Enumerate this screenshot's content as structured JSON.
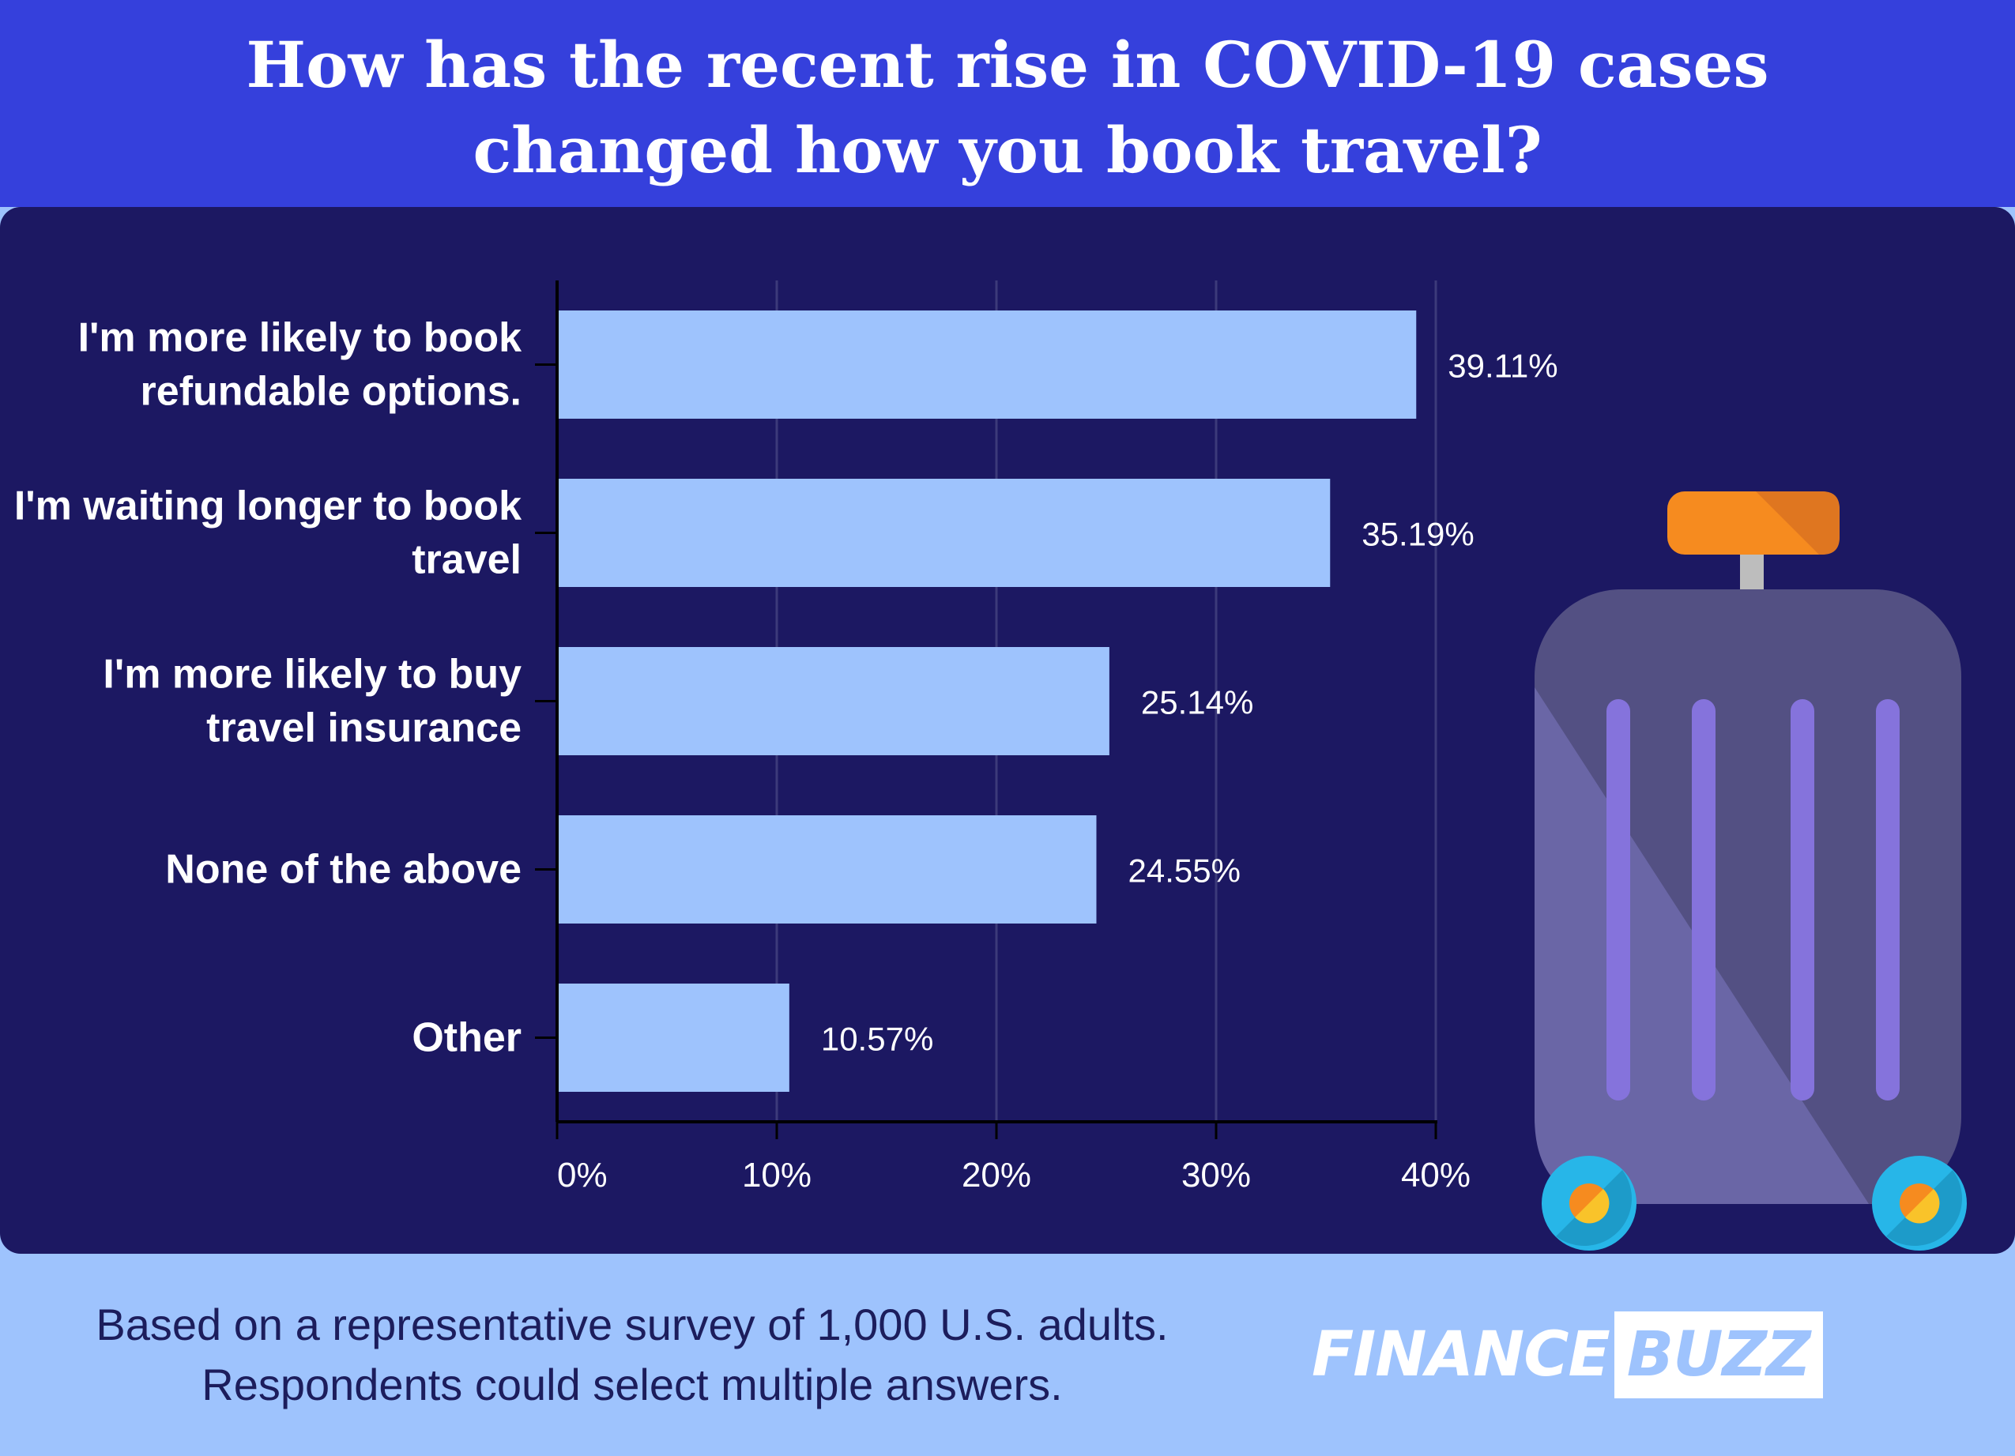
{
  "title_lines": [
    "How has the recent rise in COVID-19 cases",
    "changed how you book travel?"
  ],
  "footer_lines": [
    "Based on a representative survey of 1,000 U.S. adults.",
    "Respondents could select multiple answers."
  ],
  "logo": {
    "part1": "FINANCE",
    "part2": "BUZZ"
  },
  "colors": {
    "header_bg": "#3540dc",
    "panel_bg": "#1c1862",
    "page_bg": "#9ec3fd",
    "bar": "#9ec3fd",
    "gridline": "#3c3a7a",
    "suitcase_body": "#535083",
    "suitcase_shade": "#6a66a6",
    "suitcase_stripe": "#8573dc",
    "handle": "#f68b1f",
    "wheel": "#27b6e8"
  },
  "decoration": {
    "icon": "suitcase-icon"
  },
  "chart_data": {
    "type": "bar",
    "orientation": "horizontal",
    "title": "How has the recent rise in COVID-19 cases changed how you book travel?",
    "categories": [
      [
        "I'm more likely to book",
        "refundable options."
      ],
      [
        "I'm waiting longer to book",
        "travel"
      ],
      [
        "I'm more likely to buy",
        "travel insurance"
      ],
      [
        "None of the above"
      ],
      [
        "Other"
      ]
    ],
    "values": [
      39.11,
      35.19,
      25.14,
      24.55,
      10.57
    ],
    "value_labels": [
      "39.11%",
      "35.19%",
      "25.14%",
      "24.55%",
      "10.57%"
    ],
    "x_ticks": [
      0,
      10,
      20,
      30,
      40
    ],
    "x_tick_labels": [
      "0%",
      "10%",
      "20%",
      "30%",
      "40%"
    ],
    "xlim": [
      0,
      40
    ],
    "xlabel": "",
    "ylabel": "",
    "grid": true,
    "legend": "none"
  }
}
